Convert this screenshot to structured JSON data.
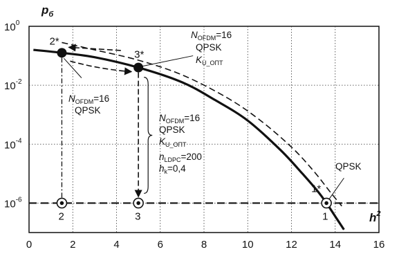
{
  "chart_data": {
    "type": "line",
    "xlabel": "h",
    "xlabel_sup": "2",
    "ylabel": "p",
    "ylabel_sub": "б",
    "xlim": [
      0,
      16
    ],
    "ylim_exp": [
      -7,
      0
    ],
    "log_y": true,
    "grid": "dotted",
    "x_ticks": [
      "0",
      "2",
      "4",
      "6",
      "8",
      "10",
      "12",
      "14",
      "16"
    ],
    "y_ticks": [
      {
        "base": "10",
        "exp": "0",
        "value_exp": 0
      },
      {
        "base": "10",
        "exp": "-2",
        "value_exp": -2
      },
      {
        "base": "10",
        "exp": "-4",
        "value_exp": -4
      },
      {
        "base": "10",
        "exp": "-6",
        "value_exp": -6
      }
    ],
    "series": [
      {
        "style": "solid-thick",
        "x": [
          0.2,
          1.5,
          3.0,
          5.0,
          7.0,
          8.5,
          10.0,
          11.5,
          12.5,
          13.2,
          13.6,
          14.0,
          14.4
        ],
        "log10_y": [
          -0.8,
          -0.9,
          -1.05,
          -1.4,
          -1.9,
          -2.5,
          -3.2,
          -4.2,
          -5.0,
          -5.6,
          -6.0,
          -6.45,
          -6.9
        ]
      },
      {
        "style": "dashed",
        "x": [
          1.5,
          3.0,
          5.0,
          7.0,
          9.0,
          10.5,
          12.0,
          13.0,
          13.8,
          14.3
        ],
        "log10_y": [
          -0.55,
          -0.8,
          -1.15,
          -1.65,
          -2.4,
          -3.15,
          -4.1,
          -4.9,
          -5.65,
          -6.1
        ]
      },
      {
        "style": "dashed-horizontal",
        "x": [
          0,
          16
        ],
        "log10_y": [
          -6,
          -6
        ]
      }
    ],
    "points": [
      {
        "label": "1*",
        "x": 13.6,
        "log10_y": -6,
        "marker": "ring"
      },
      {
        "label": "2*",
        "x": 1.5,
        "log10_y": -0.9,
        "marker": "filled"
      },
      {
        "label": "3*",
        "x": 5.0,
        "log10_y": -1.4,
        "marker": "filled"
      },
      {
        "label": "1",
        "x": 13.6,
        "log10_y": -6,
        "marker": "none"
      },
      {
        "label": "2",
        "x": 1.5,
        "log10_y": -6,
        "marker": "ring"
      },
      {
        "label": "3",
        "x": 5.0,
        "log10_y": -6,
        "marker": "ring"
      }
    ],
    "annotations": {
      "top": {
        "n": "N",
        "n_sub": "OFDM",
        "n_val": "=16",
        "mod": "QPSK",
        "k": "K",
        "k_sub": "U_ОПТ"
      },
      "left": {
        "n": "N",
        "n_sub": "OFDM",
        "n_val": "=16",
        "mod": "QPSK"
      },
      "mid": {
        "n": "N",
        "n_sub": "OFDM",
        "n_val": "=16",
        "mod": "QPSK",
        "k": "K",
        "k_sub": "U_ОПТ",
        "l": "n",
        "l_sub": "LDPC",
        "l_val": "=200",
        "r": "h",
        "r_sub": "k",
        "r_val": "=0,4"
      },
      "right": {
        "mod": "QPSK"
      }
    }
  }
}
